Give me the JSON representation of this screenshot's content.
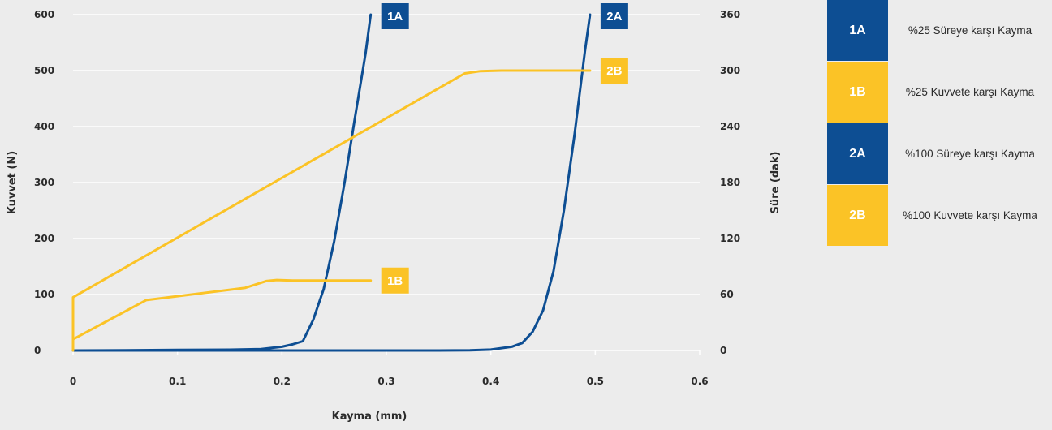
{
  "colors": {
    "navy": "#0d4e93",
    "yellow": "#fbc326",
    "grid": "#ffffff",
    "background": "#ececec"
  },
  "chart_data": {
    "type": "line",
    "xlabel": "Kayma (mm)",
    "ylabel_left": "Kuvvet (N)",
    "ylabel_right": "Süre (dak)",
    "xlim": [
      0,
      0.6
    ],
    "ylim_left": [
      0,
      600
    ],
    "ylim_right": [
      0,
      360
    ],
    "x_ticks": [
      "0",
      "0.1",
      "0.2",
      "0.3",
      "0.4",
      "0.5",
      "0.6"
    ],
    "y_left_ticks": [
      "0",
      "100",
      "200",
      "300",
      "400",
      "500",
      "600"
    ],
    "y_right_ticks": [
      "0",
      "60",
      "120",
      "180",
      "240",
      "300",
      "360"
    ],
    "grid": "horizontal",
    "series": [
      {
        "name": "1A",
        "axis": "right",
        "color": "#0d4e93",
        "x": [
          0,
          0.05,
          0.1,
          0.15,
          0.18,
          0.2,
          0.21,
          0.22,
          0.23,
          0.24,
          0.25,
          0.26,
          0.27,
          0.28,
          0.285
        ],
        "y": [
          0,
          0.3,
          0.6,
          0.9,
          1.5,
          4,
          6.5,
          10,
          33,
          66,
          117,
          180,
          250,
          318,
          360
        ]
      },
      {
        "name": "1B",
        "axis": "left",
        "color": "#fbc326",
        "x": [
          0,
          0,
          0.07,
          0.165,
          0.185,
          0.195,
          0.21,
          0.285
        ],
        "y": [
          0,
          20,
          90,
          112,
          124,
          126,
          125,
          125
        ]
      },
      {
        "name": "2A",
        "axis": "right",
        "color": "#0d4e93",
        "x": [
          0,
          0.1,
          0.2,
          0.3,
          0.35,
          0.38,
          0.4,
          0.42,
          0.43,
          0.44,
          0.45,
          0.46,
          0.47,
          0.48,
          0.49,
          0.495
        ],
        "y": [
          0,
          0,
          0,
          0,
          0,
          0.2,
          1,
          4,
          8,
          20,
          43,
          85,
          150,
          230,
          320,
          360
        ]
      },
      {
        "name": "2B",
        "axis": "left",
        "color": "#fbc326",
        "x": [
          0,
          0,
          0.375,
          0.39,
          0.41,
          0.495
        ],
        "y": [
          0,
          95,
          495,
          499,
          500,
          500
        ]
      }
    ]
  },
  "legend": [
    {
      "key": "1A",
      "label": "%25 Süreye karşı Kayma",
      "color": "#0d4e93"
    },
    {
      "key": "1B",
      "label": "%25 Kuvvete karşı Kayma",
      "color": "#fbc326"
    },
    {
      "key": "2A",
      "label": "%100 Süreye karşı Kayma",
      "color": "#0d4e93"
    },
    {
      "key": "2B",
      "label": "%100 Kuvvete karşı Kayma",
      "color": "#fbc326"
    }
  ]
}
